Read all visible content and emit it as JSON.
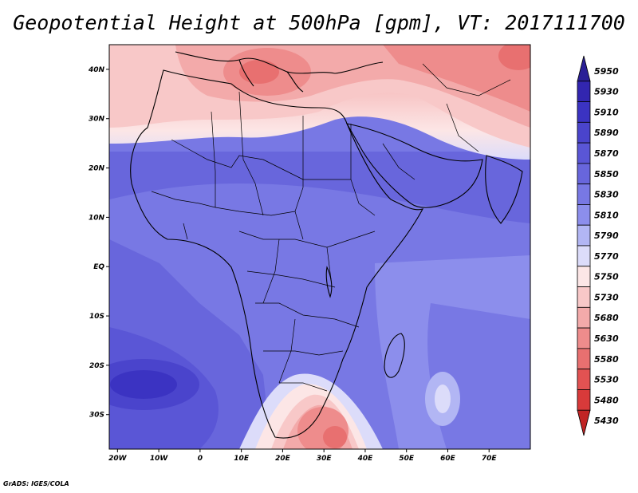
{
  "title": "Geopotential Height at 500hPa [gpm], VT: 2017111700",
  "credit": "GrADS: IGES/COLA",
  "map": {
    "lon_range": [
      -22,
      80
    ],
    "lat_range": [
      -37,
      45
    ],
    "x_ticks": [
      {
        "lon": -20,
        "label": "20W"
      },
      {
        "lon": -10,
        "label": "10W"
      },
      {
        "lon": 0,
        "label": "0"
      },
      {
        "lon": 10,
        "label": "10E"
      },
      {
        "lon": 20,
        "label": "20E"
      },
      {
        "lon": 30,
        "label": "30E"
      },
      {
        "lon": 40,
        "label": "40E"
      },
      {
        "lon": 50,
        "label": "50E"
      },
      {
        "lon": 60,
        "label": "60E"
      },
      {
        "lon": 70,
        "label": "70E"
      }
    ],
    "y_ticks": [
      {
        "lat": 40,
        "label": "40N"
      },
      {
        "lat": 30,
        "label": "30N"
      },
      {
        "lat": 20,
        "label": "20N"
      },
      {
        "lat": 10,
        "label": "10N"
      },
      {
        "lat": 0,
        "label": "EQ"
      },
      {
        "lat": -10,
        "label": "10S"
      },
      {
        "lat": -20,
        "label": "20S"
      },
      {
        "lat": -30,
        "label": "30S"
      }
    ]
  },
  "colorbar": {
    "levels": [
      "5950",
      "5930",
      "5910",
      "5890",
      "5870",
      "5850",
      "5830",
      "5810",
      "5790",
      "5770",
      "5750",
      "5730",
      "5680",
      "5630",
      "5580",
      "5530",
      "5480",
      "5430"
    ],
    "colors": [
      "#2a1f96",
      "#3226b0",
      "#3b33c2",
      "#4a44cc",
      "#5a56d6",
      "#6866dc",
      "#7878e4",
      "#8c8eec",
      "#b2b6f4",
      "#dcdcfa",
      "#fce6e6",
      "#f8c8c8",
      "#f3aaaa",
      "#ee8c8c",
      "#e87070",
      "#e25252",
      "#d83a3a",
      "#c02424"
    ]
  }
}
